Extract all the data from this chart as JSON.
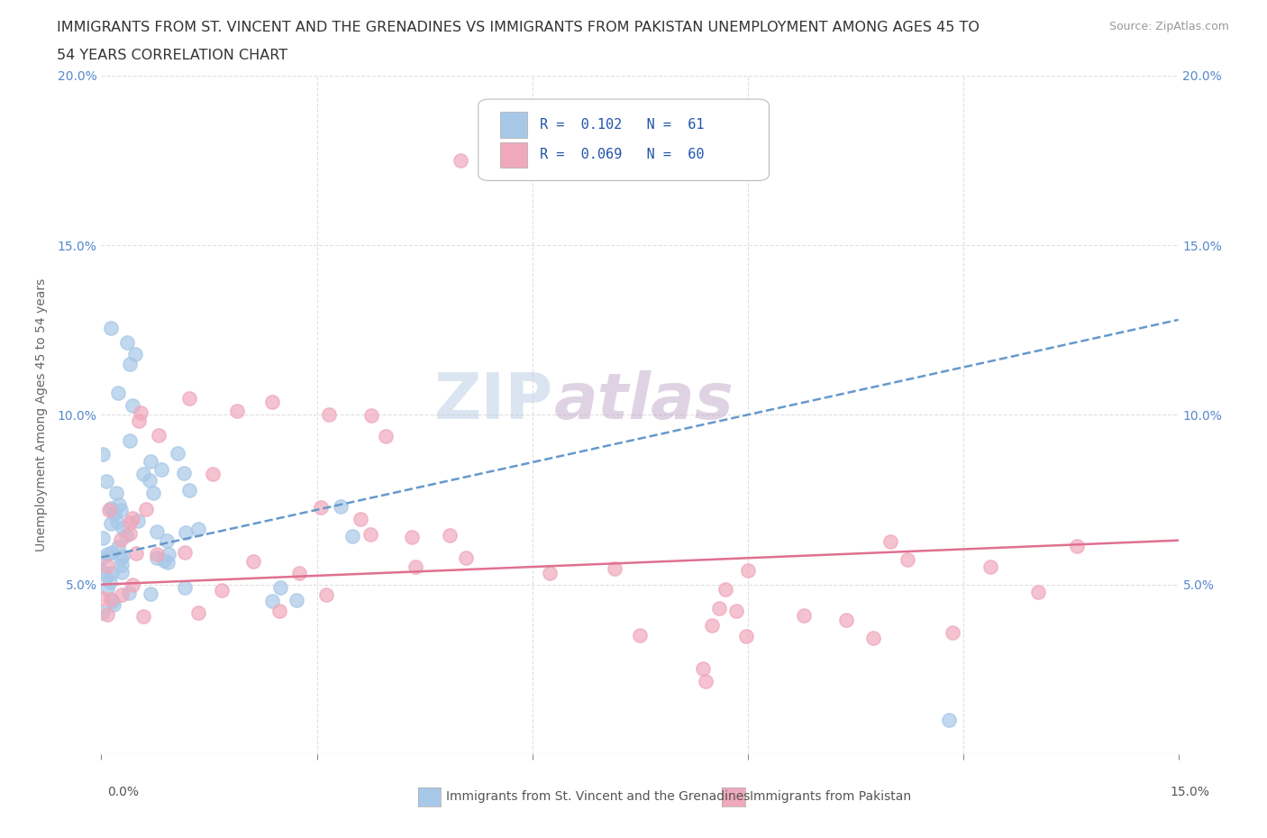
{
  "title_line1": "IMMIGRANTS FROM ST. VINCENT AND THE GRENADINES VS IMMIGRANTS FROM PAKISTAN UNEMPLOYMENT AMONG AGES 45 TO",
  "title_line2": "54 YEARS CORRELATION CHART",
  "source": "Source: ZipAtlas.com",
  "ylabel": "Unemployment Among Ages 45 to 54 years",
  "xlim": [
    0.0,
    0.15
  ],
  "ylim": [
    0.0,
    0.2
  ],
  "xticks": [
    0.0,
    0.03,
    0.06,
    0.09,
    0.12,
    0.15
  ],
  "yticks": [
    0.0,
    0.05,
    0.1,
    0.15,
    0.2
  ],
  "xtick_labels": [
    "0.0%",
    "",
    "",
    "",
    "",
    ""
  ],
  "ytick_labels_left": [
    "",
    "5.0%",
    "10.0%",
    "15.0%",
    "20.0%"
  ],
  "ytick_labels_right": [
    "",
    "5.0%",
    "10.0%",
    "15.0%",
    "20.0%"
  ],
  "legend_R1": "R = 0.102",
  "legend_N1": "N = 61",
  "legend_R2": "R = 0.069",
  "legend_N2": "N = 60",
  "color_vincent": "#a8c8e8",
  "color_pakistan": "#f0a8bc",
  "color_vincent_line": "#6699cc",
  "color_pakistan_line": "#e07090",
  "watermark_color": "#d0dff0",
  "watermark_color2": "#c0b0c0",
  "background_color": "#ffffff",
  "grid_color": "#e0e0e0",
  "bottom_label_0": "0.0%",
  "bottom_label_15": "15.0%",
  "bottom_legend1": "Immigrants from St. Vincent and the Grenadines",
  "bottom_legend2": "Immigrants from Pakistan"
}
